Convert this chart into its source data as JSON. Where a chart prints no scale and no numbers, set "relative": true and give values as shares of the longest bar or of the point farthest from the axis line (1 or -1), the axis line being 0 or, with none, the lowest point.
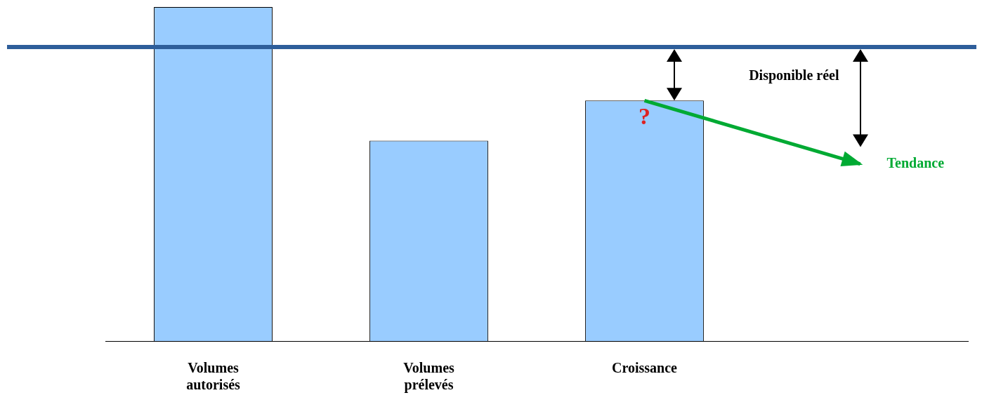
{
  "chart_data": {
    "type": "bar",
    "relative": true,
    "categories": [
      "Volumes autorisés",
      "Volumes prélevés",
      "Croissance",
      null
    ],
    "series": [
      {
        "color": "#99ccff",
        "values": [
          1,
          0.6,
          0.72,
          null
        ]
      },
      {
        "type": "line",
        "name": "Tendance",
        "color": "#00aa33",
        "values": [
          null,
          null,
          0.72,
          0.53
        ]
      }
    ],
    "ref_lines": [
      {
        "axis": "y",
        "value": 0.88,
        "color": "#2e5e9a"
      }
    ],
    "annotations": [
      "?",
      "Disponible réel"
    ],
    "legend": "right",
    "grid": false
  }
}
